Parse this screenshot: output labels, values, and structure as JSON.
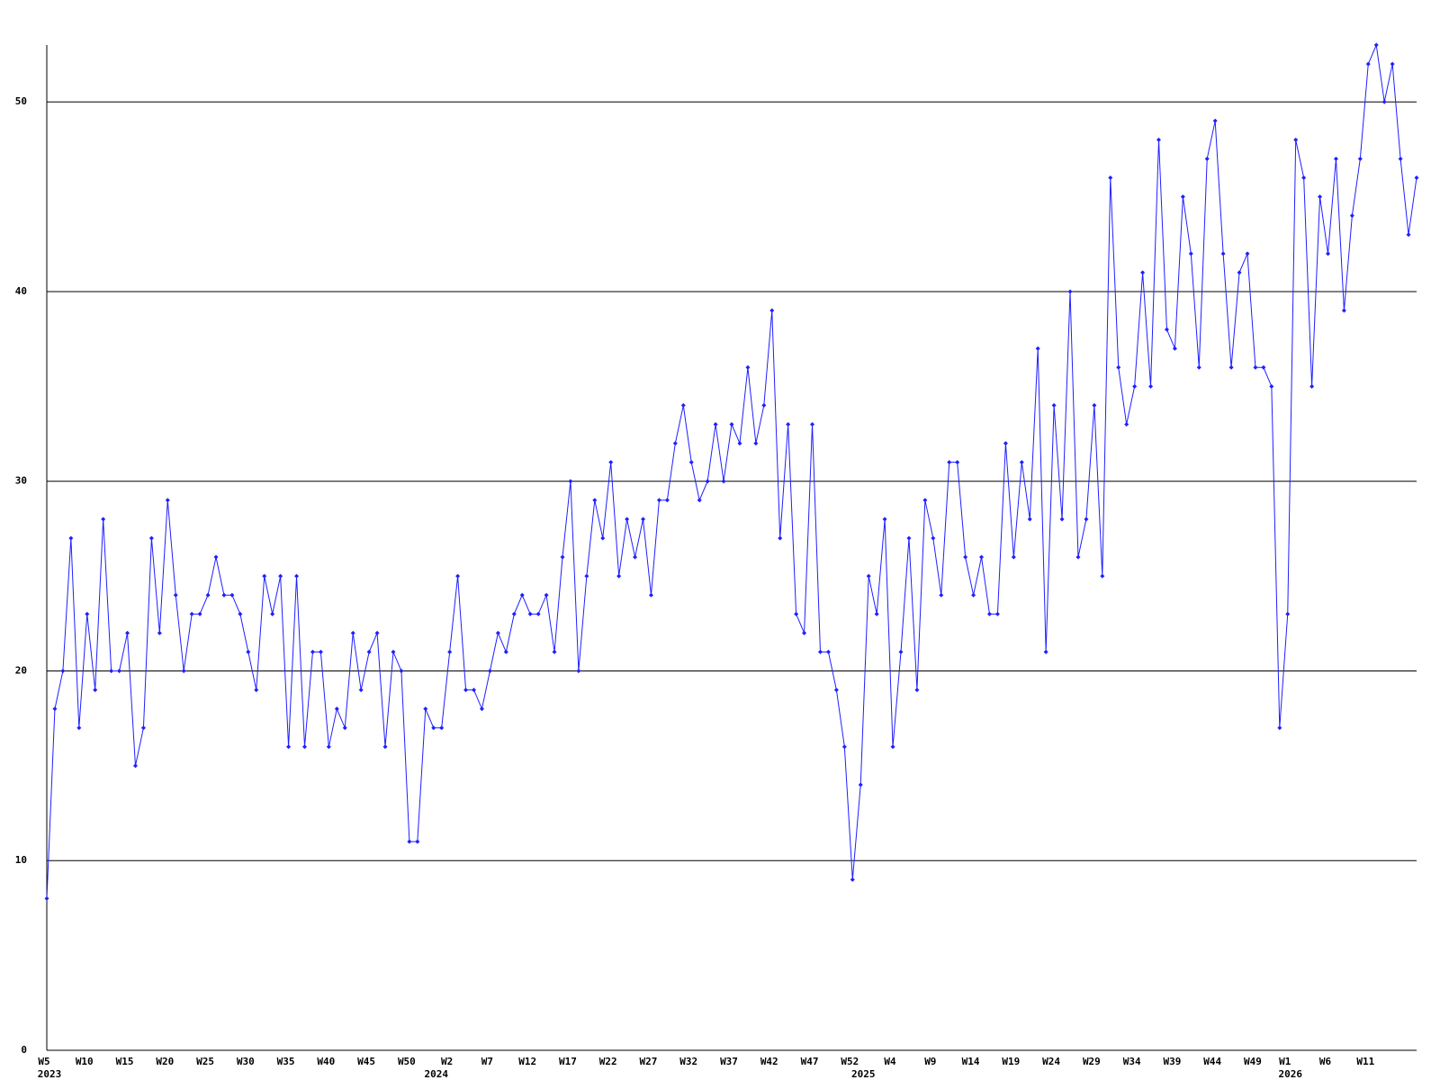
{
  "chart_data": {
    "type": "line",
    "categories": [
      "W5",
      null,
      null,
      null,
      null,
      "W10",
      null,
      null,
      null,
      null,
      "W15",
      null,
      null,
      null,
      null,
      "W20",
      null,
      null,
      null,
      null,
      "W25",
      null,
      null,
      null,
      null,
      "W30",
      null,
      null,
      null,
      null,
      "W35",
      null,
      null,
      null,
      null,
      "W40",
      null,
      null,
      null,
      null,
      "W45",
      null,
      null,
      null,
      null,
      "W50",
      null,
      null,
      null,
      null,
      "W2",
      null,
      null,
      null,
      null,
      "W7",
      null,
      null,
      null,
      null,
      "W12",
      null,
      null,
      null,
      null,
      "W17",
      null,
      null,
      null,
      null,
      "W22",
      null,
      null,
      null,
      null,
      "W27",
      null,
      null,
      null,
      null,
      "W32",
      null,
      null,
      null,
      null,
      "W37",
      null,
      null,
      null,
      null,
      "W42",
      null,
      null,
      null,
      null,
      "W47",
      null,
      null,
      null,
      null,
      "W52",
      null,
      null,
      null,
      null,
      "W4",
      null,
      null,
      null,
      null,
      "W9",
      null,
      null,
      null,
      null,
      "W14",
      null,
      null,
      null,
      null,
      "W19",
      null,
      null,
      null,
      null,
      "W24",
      null,
      null,
      null,
      null,
      "W29",
      null,
      null,
      null,
      null,
      "W34",
      null,
      null,
      null,
      null,
      "W39",
      null,
      null,
      null,
      null,
      "W44",
      null,
      null,
      null,
      null,
      "W49",
      null,
      null,
      null,
      "W1",
      null,
      null,
      null,
      null,
      "W6",
      null,
      null,
      null,
      null,
      "W11",
      null,
      null,
      null,
      null,
      null,
      null
    ],
    "category_years": [
      "2023",
      null,
      null,
      null,
      null,
      null,
      null,
      null,
      null,
      null,
      null,
      null,
      null,
      null,
      null,
      null,
      null,
      null,
      null,
      null,
      null,
      null,
      null,
      null,
      null,
      null,
      null,
      null,
      null,
      null,
      null,
      null,
      null,
      null,
      null,
      null,
      null,
      null,
      null,
      null,
      null,
      null,
      null,
      null,
      null,
      null,
      null,
      null,
      "2024",
      null,
      null,
      null,
      null,
      null,
      null,
      null,
      null,
      null,
      null,
      null,
      null,
      null,
      null,
      null,
      null,
      null,
      null,
      null,
      null,
      null,
      null,
      null,
      null,
      null,
      null,
      null,
      null,
      null,
      null,
      null,
      null,
      null,
      null,
      null,
      null,
      null,
      null,
      null,
      null,
      null,
      null,
      null,
      null,
      null,
      null,
      null,
      null,
      null,
      null,
      null,
      null,
      "2025",
      null,
      null,
      null,
      null,
      null,
      null,
      null,
      null,
      null,
      null,
      null,
      null,
      null,
      null,
      null,
      null,
      null,
      null,
      null,
      null,
      null,
      null,
      null,
      null,
      null,
      null,
      null,
      null,
      null,
      null,
      null,
      null,
      null,
      null,
      null,
      null,
      null,
      null,
      null,
      null,
      null,
      null,
      null,
      null,
      null,
      null,
      null,
      null,
      null,
      null,
      null,
      null,
      "2026",
      null,
      null,
      null,
      null,
      null,
      null,
      null,
      null,
      null,
      null,
      null,
      null,
      null,
      null,
      null,
      null
    ],
    "series": [
      {
        "color": "#1f1fff",
        "values": [
          8,
          18,
          20,
          27,
          17,
          23,
          19,
          28,
          20,
          20,
          22,
          15,
          17,
          27,
          22,
          29,
          24,
          20,
          23,
          23,
          24,
          26,
          24,
          24,
          23,
          21,
          19,
          25,
          23,
          25,
          16,
          25,
          16,
          21,
          21,
          16,
          18,
          17,
          22,
          19,
          21,
          22,
          16,
          21,
          20,
          11,
          11,
          18,
          17,
          17,
          21,
          25,
          19,
          19,
          18,
          20,
          22,
          21,
          23,
          24,
          23,
          23,
          24,
          21,
          26,
          30,
          20,
          25,
          29,
          27,
          31,
          25,
          28,
          26,
          28,
          24,
          29,
          29,
          32,
          34,
          31,
          29,
          30,
          33,
          30,
          33,
          32,
          36,
          32,
          34,
          39,
          27,
          33,
          23,
          22,
          33,
          21,
          21,
          19,
          16,
          9,
          14,
          25,
          23,
          28,
          16,
          21,
          27,
          19,
          29,
          27,
          24,
          31,
          31,
          26,
          24,
          26,
          23,
          23,
          32,
          26,
          31,
          28,
          37,
          21,
          34,
          28,
          40,
          26,
          28,
          34,
          25,
          46,
          36,
          33,
          35,
          41,
          35,
          48,
          38,
          37,
          45,
          42,
          36,
          47,
          49,
          42,
          36,
          41,
          42,
          36,
          36,
          35,
          17,
          23,
          48,
          46,
          35,
          45,
          42,
          47,
          39,
          44,
          47,
          52,
          53,
          50,
          52,
          47,
          43,
          46
        ]
      }
    ],
    "ylim": [
      0,
      53
    ],
    "yticks": [
      0,
      10,
      20,
      30,
      40,
      50
    ],
    "grid": true
  }
}
